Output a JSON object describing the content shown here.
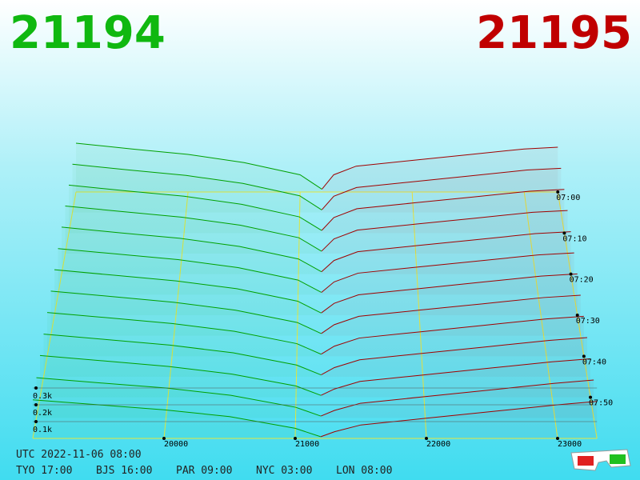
{
  "header": {
    "best_bid": "21194",
    "best_ask": "21195"
  },
  "chart_data": {
    "type": "depth3d",
    "bid_prices": [
      19000,
      19500,
      20000,
      20500,
      21000,
      21194
    ],
    "ask_prices": [
      21195,
      21300,
      21500,
      22000,
      22500,
      23000,
      23300
    ],
    "bid_color": "#00a000",
    "ask_color": "#a00000",
    "grid_color": "#e8e840",
    "xticks": [
      20000,
      21000,
      22000,
      23000
    ],
    "zticks": [
      {
        "value": 100,
        "label": "0.1k"
      },
      {
        "value": 200,
        "label": "0.2k"
      },
      {
        "value": 300,
        "label": "0.3k"
      }
    ],
    "time_ticks": [
      "07:00",
      "07:10",
      "07:20",
      "07:30",
      "07:40",
      "07:50"
    ],
    "bids": [
      [
        340,
        300,
        262,
        205,
        120,
        20
      ],
      [
        332,
        292,
        255,
        200,
        115,
        18
      ],
      [
        325,
        286,
        250,
        195,
        110,
        18
      ],
      [
        318,
        280,
        243,
        190,
        106,
        16
      ],
      [
        310,
        272,
        236,
        183,
        100,
        16
      ],
      [
        300,
        264,
        228,
        176,
        95,
        15
      ],
      [
        292,
        256,
        220,
        170,
        90,
        14
      ],
      [
        283,
        248,
        212,
        162,
        84,
        14
      ],
      [
        274,
        240,
        205,
        156,
        79,
        13
      ],
      [
        264,
        230,
        196,
        148,
        73,
        12
      ],
      [
        255,
        222,
        189,
        142,
        69,
        12
      ],
      [
        242,
        210,
        180,
        136,
        64,
        11
      ],
      [
        230,
        200,
        170,
        130,
        60,
        10
      ]
    ],
    "asks": [
      [
        20,
        120,
        180,
        220,
        260,
        300,
        312
      ],
      [
        19,
        112,
        172,
        212,
        252,
        292,
        304
      ],
      [
        18,
        105,
        165,
        205,
        244,
        284,
        296
      ],
      [
        17,
        98,
        157,
        197,
        236,
        276,
        288
      ],
      [
        16,
        90,
        148,
        188,
        227,
        267,
        280
      ],
      [
        15,
        83,
        140,
        180,
        219,
        259,
        272
      ],
      [
        15,
        76,
        131,
        171,
        211,
        251,
        265
      ],
      [
        14,
        70,
        123,
        163,
        202,
        242,
        257
      ],
      [
        13,
        63,
        114,
        154,
        194,
        234,
        250
      ],
      [
        12,
        57,
        105,
        145,
        185,
        225,
        242
      ],
      [
        12,
        51,
        97,
        137,
        177,
        217,
        235
      ],
      [
        11,
        45,
        88,
        128,
        168,
        208,
        228
      ],
      [
        10,
        40,
        80,
        120,
        160,
        200,
        220
      ]
    ]
  },
  "footer": {
    "utc": "UTC 2022-11-06 08:00",
    "cities": [
      "TYO 17:00",
      "BJS 16:00",
      "PAR 09:00",
      "NYC 03:00",
      "LON 08:00"
    ]
  }
}
